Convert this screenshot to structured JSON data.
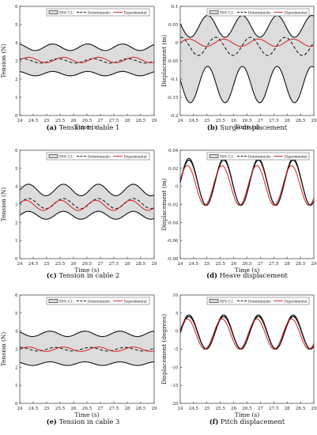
{
  "figure": {
    "legend_labels": {
      "ci": "95% C.I.",
      "det": "Deterministic",
      "exp": "Experimental"
    },
    "colors": {
      "band_fill": "#dcdcdc",
      "band_edge": "#111111",
      "deterministic": "#222222",
      "experimental": "#d42020",
      "axis": "#333333"
    },
    "time_label": "Time (s)",
    "xticks": [
      "24",
      "24.5",
      "25",
      "25.5",
      "26",
      "26.5",
      "27",
      "27.5",
      "28",
      "28.5",
      "29"
    ],
    "panels": [
      {
        "id": "a",
        "caption_letter": "(a)",
        "caption_text": "Tension in cable 1",
        "ylabel": "Tension  (N)",
        "yticks": [
          "0",
          "1",
          "2",
          "3",
          "4",
          "5",
          "6"
        ]
      },
      {
        "id": "b",
        "caption_letter": "(b)",
        "caption_text": "Surge displacement",
        "ylabel": "Displacement  (m)",
        "yticks": [
          "-0.2",
          "-0.15",
          "-0.1",
          "-0.05",
          "0",
          "0.05",
          "0.1"
        ]
      },
      {
        "id": "c",
        "caption_letter": "(c)",
        "caption_text": "Tension in cable 2",
        "ylabel": "Tension  (N)",
        "yticks": [
          "0",
          "1",
          "2",
          "3",
          "4",
          "5",
          "6"
        ]
      },
      {
        "id": "d",
        "caption_letter": "(d)",
        "caption_text": "Heave displacement",
        "ylabel": "Displacement  (m)",
        "yticks": [
          "-0.08",
          "-0.06",
          "-0.04",
          "-0.02",
          "0",
          "0.02",
          "0.04"
        ]
      },
      {
        "id": "e",
        "caption_letter": "(e)",
        "caption_text": "Tension in cable 3",
        "ylabel": "Tension  (N)",
        "yticks": [
          "0",
          "1",
          "2",
          "3",
          "4",
          "5",
          "6"
        ]
      },
      {
        "id": "f",
        "caption_letter": "(f)",
        "caption_text": "Pitch displacement",
        "ylabel": "Displacement  (degrees)",
        "yticks": [
          "-20",
          "-15",
          "-10",
          "-5",
          "0",
          "5",
          "10"
        ]
      }
    ]
  },
  "chart_data": [
    {
      "type": "line",
      "ylim": [
        0,
        6
      ],
      "xlim": [
        24,
        29
      ],
      "series": [
        {
          "name": "95% C.I.",
          "kind": "band",
          "lower": {
            "mean": 2.3,
            "amp": 0.12,
            "period": 1.3,
            "phase": 0.4
          },
          "upper": {
            "mean": 3.75,
            "amp": 0.18,
            "period": 1.3,
            "phase": 0.4
          }
        },
        {
          "name": "Deterministic",
          "kind": "sine",
          "mean": 3.0,
          "amp": 0.12,
          "period": 1.3,
          "phase": 0.2
        },
        {
          "name": "Experimental",
          "kind": "sine",
          "mean": 3.05,
          "amp": 0.15,
          "period": 1.3,
          "phase": 0.0
        }
      ]
    },
    {
      "type": "line",
      "ylim": [
        -0.2,
        0.1
      ],
      "xlim": [
        24,
        29
      ],
      "series": [
        {
          "name": "95% C.I.",
          "kind": "band",
          "lower": {
            "mean": -0.115,
            "amp": 0.05,
            "period": 1.3,
            "phase": 0.6
          },
          "upper": {
            "mean": 0.045,
            "amp": 0.03,
            "period": 1.3,
            "phase": 0.6
          }
        },
        {
          "name": "Deterministic",
          "kind": "sine",
          "mean": -0.01,
          "amp": 0.025,
          "period": 1.3,
          "phase": 0.3
        },
        {
          "name": "Experimental",
          "kind": "sine",
          "mean": 0.0,
          "amp": 0.01,
          "period": 1.3,
          "phase": 0.0
        }
      ]
    },
    {
      "type": "line",
      "ylim": [
        0,
        6
      ],
      "xlim": [
        24,
        29
      ],
      "series": [
        {
          "name": "95% C.I.",
          "kind": "band",
          "lower": {
            "mean": 2.4,
            "amp": 0.22,
            "period": 1.3,
            "phase": 0.0
          },
          "upper": {
            "mean": 3.8,
            "amp": 0.32,
            "period": 1.3,
            "phase": 0.0
          }
        },
        {
          "name": "Deterministic",
          "kind": "sine",
          "mean": 3.05,
          "amp": 0.28,
          "period": 1.3,
          "phase": 0.0
        },
        {
          "name": "Experimental",
          "kind": "sine",
          "mean": 2.95,
          "amp": 0.28,
          "period": 1.3,
          "phase": 0.1
        }
      ]
    },
    {
      "type": "line",
      "ylim": [
        -0.08,
        0.04
      ],
      "xlim": [
        24,
        29
      ],
      "series": [
        {
          "name": "95% C.I.",
          "kind": "band",
          "lower": {
            "mean": 0.004,
            "amp": 0.025,
            "period": 1.3,
            "phase": 0.0
          },
          "upper": {
            "mean": 0.005,
            "amp": 0.026,
            "period": 1.3,
            "phase": 0.0
          }
        },
        {
          "name": "Deterministic",
          "kind": "sine",
          "mean": 0.0045,
          "amp": 0.025,
          "period": 1.3,
          "phase": 0.0
        },
        {
          "name": "Experimental",
          "kind": "sine",
          "mean": 0.001,
          "amp": 0.022,
          "period": 1.3,
          "phase": 0.06
        }
      ]
    },
    {
      "type": "line",
      "ylim": [
        0,
        6
      ],
      "xlim": [
        24,
        29
      ],
      "series": [
        {
          "name": "95% C.I.",
          "kind": "band",
          "lower": {
            "mean": 2.2,
            "amp": 0.1,
            "period": 1.3,
            "phase": 0.5
          },
          "upper": {
            "mean": 3.85,
            "amp": 0.15,
            "period": 1.3,
            "phase": 0.5
          }
        },
        {
          "name": "Deterministic",
          "kind": "sine",
          "mean": 3.0,
          "amp": 0.1,
          "period": 1.3,
          "phase": 0.3
        },
        {
          "name": "Experimental",
          "kind": "sine",
          "mean": 3.0,
          "amp": 0.12,
          "period": 1.3,
          "phase": 0.0
        }
      ]
    },
    {
      "type": "line",
      "ylim": [
        -20,
        10
      ],
      "xlim": [
        24,
        29
      ],
      "series": [
        {
          "name": "95% C.I.",
          "kind": "band",
          "lower": {
            "mean": -0.5,
            "amp": 4.5,
            "period": 1.3,
            "phase": 0.0
          },
          "upper": {
            "mean": -0.2,
            "amp": 4.7,
            "period": 1.3,
            "phase": 0.0
          }
        },
        {
          "name": "Deterministic",
          "kind": "sine",
          "mean": -0.3,
          "amp": 4.6,
          "period": 1.3,
          "phase": 0.0
        },
        {
          "name": "Experimental",
          "kind": "sine",
          "mean": -0.8,
          "amp": 4.2,
          "period": 1.3,
          "phase": 0.06
        }
      ]
    }
  ]
}
